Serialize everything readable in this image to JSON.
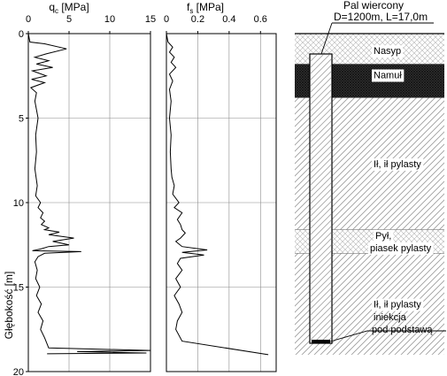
{
  "qc_panel": {
    "title_main": "q",
    "title_sub": "c",
    "title_unit": " [MPa]",
    "ticks": [
      "0",
      "5",
      "10",
      "15"
    ]
  },
  "fs_panel": {
    "title_main": "f",
    "title_sub": "s",
    "title_unit": " [MPa]",
    "ticks": [
      "0",
      "0.2",
      "0.4",
      "0.6"
    ]
  },
  "depth_axis": {
    "label": "Głębokość [m]",
    "ticks": [
      "0",
      "5",
      "10",
      "15",
      "20"
    ]
  },
  "pile": {
    "title_line1": "Pal wiercony",
    "title_line2": "D=1200m, L=17,0m",
    "grout_line1": "iniekcja",
    "grout_line2": "pod podstawą"
  },
  "layers": [
    {
      "label": "Nasyp",
      "top_m": 0.0,
      "bottom_m": 1.8,
      "pattern": "crosshatch"
    },
    {
      "label": "Namuł",
      "top_m": 1.8,
      "bottom_m": 3.8,
      "pattern": "dense"
    },
    {
      "label": "Ił, ił pylasty",
      "top_m": 3.8,
      "bottom_m": 11.6,
      "pattern": "diagonal"
    },
    {
      "label": "Pył, piasek pylasty",
      "label_line1": "Pył,",
      "label_line2": "piasek pylasty",
      "top_m": 11.6,
      "bottom_m": 13.0,
      "pattern": "crosshatch"
    },
    {
      "label": "Ił, ił pylasty",
      "top_m": 13.0,
      "bottom_m": 19.0,
      "pattern": "diagonal"
    }
  ],
  "chart_data": [
    {
      "type": "line",
      "xlabel": "qc [MPa]",
      "ylabel": "Głębokość [m]",
      "xlim": [
        0,
        15
      ],
      "ylim": [
        20,
        0
      ],
      "grid": true,
      "series": [
        {
          "x": [
            0.0,
            0.2,
            2.0,
            4.7,
            2.2,
            0.8,
            2.5,
            1.0,
            3.0,
            0.5,
            2.2,
            0.4,
            2.0,
            0.3,
            1.0,
            0.8,
            1.2,
            0.9,
            1.0,
            0.8,
            1.1,
            0.9,
            1.5,
            1.2,
            1.8,
            1.5,
            2.0,
            1.6,
            2.5,
            2.0,
            3.8,
            2.5,
            5.6,
            3.0,
            5.0,
            2.5,
            1.5,
            0.5,
            6.5,
            2.0,
            1.2,
            0.8,
            1.1,
            0.9,
            1.4,
            1.0,
            1.6,
            1.2,
            1.8,
            1.5,
            2.0,
            2.5,
            15.0,
            6.0,
            14.5,
            2.3
          ],
          "y": [
            0.0,
            0.5,
            0.6,
            0.9,
            1.2,
            1.4,
            1.6,
            1.8,
            2.0,
            2.2,
            2.5,
            2.7,
            2.9,
            3.2,
            3.5,
            4.0,
            5.0,
            6.0,
            7.0,
            8.0,
            9.0,
            9.6,
            10.0,
            10.3,
            10.6,
            10.9,
            11.1,
            11.3,
            11.5,
            11.6,
            11.75,
            11.9,
            12.1,
            12.3,
            12.5,
            12.6,
            12.75,
            12.85,
            12.9,
            13.0,
            13.2,
            13.5,
            14.0,
            14.5,
            15.0,
            15.5,
            16.0,
            16.5,
            17.0,
            17.5,
            18.0,
            18.6,
            18.75,
            18.82,
            18.9,
            18.95
          ]
        }
      ]
    },
    {
      "type": "line",
      "xlabel": "fs [MPa]",
      "ylabel": "Głębokość [m]",
      "xlim": [
        0,
        0.7
      ],
      "ylim": [
        20,
        0
      ],
      "grid": true,
      "series": [
        {
          "x": [
            0.0,
            0.01,
            0.04,
            0.02,
            0.05,
            0.03,
            0.06,
            0.02,
            0.04,
            0.02,
            0.03,
            0.02,
            0.03,
            0.025,
            0.03,
            0.035,
            0.05,
            0.04,
            0.08,
            0.05,
            0.1,
            0.07,
            0.09,
            0.1,
            0.12,
            0.09,
            0.06,
            0.1,
            0.26,
            0.1,
            0.24,
            0.09,
            0.07,
            0.1,
            0.06,
            0.09,
            0.05,
            0.08,
            0.1,
            0.07,
            0.06,
            0.1,
            0.65
          ],
          "y": [
            0.0,
            0.5,
            0.8,
            1.1,
            1.4,
            1.7,
            2.0,
            2.4,
            2.8,
            3.3,
            4.0,
            5.0,
            6.0,
            7.0,
            8.0,
            8.5,
            9.0,
            9.5,
            10.0,
            10.3,
            10.6,
            11.0,
            11.3,
            11.6,
            11.8,
            12.1,
            12.3,
            12.6,
            12.8,
            12.95,
            13.1,
            13.3,
            13.6,
            14.0,
            14.5,
            15.0,
            15.5,
            16.0,
            16.5,
            17.0,
            17.5,
            18.2,
            19.0
          ]
        }
      ]
    }
  ]
}
